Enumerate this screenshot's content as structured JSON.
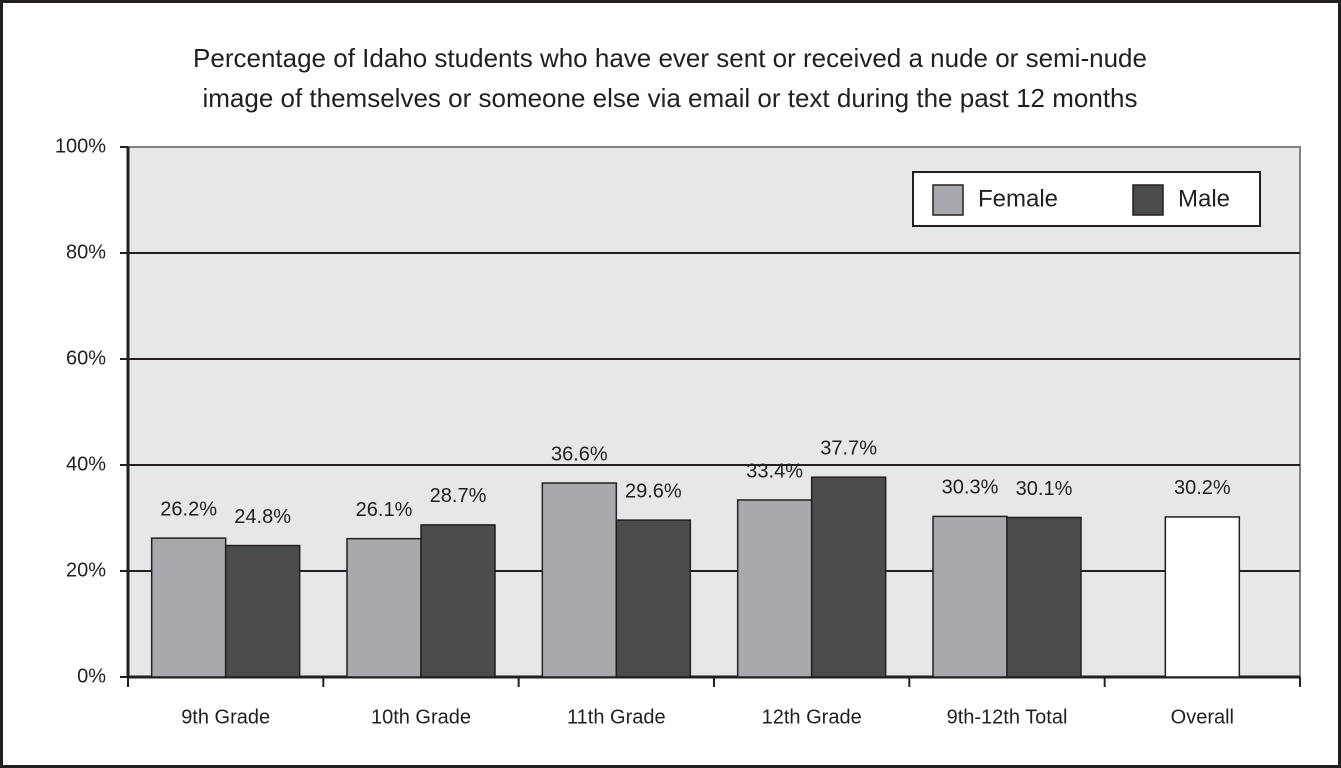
{
  "chart_data": {
    "type": "bar",
    "title": [
      "Percentage of Idaho students who have ever sent or received a nude or semi-nude",
      "image of themselves or someone else via email or text during the past 12 months"
    ],
    "categories": [
      "9th Grade",
      "10th Grade",
      "11th Grade",
      "12th Grade",
      "9th-12th Total",
      "Overall"
    ],
    "series": [
      {
        "name": "Female",
        "color": "#a7a9ac",
        "values": [
          26.2,
          26.1,
          36.6,
          33.4,
          30.3,
          null
        ],
        "value_labels": [
          "26.2%",
          "26.1%",
          "36.6%",
          "33.4%",
          "30.3%",
          null
        ]
      },
      {
        "name": "Male",
        "color": "#4a4b4d",
        "values": [
          24.8,
          28.7,
          29.6,
          37.7,
          30.1,
          null
        ],
        "value_labels": [
          "24.8%",
          "28.7%",
          "29.6%",
          "37.7%",
          "30.1%",
          null
        ]
      },
      {
        "color": "#ffffff",
        "values": [
          null,
          null,
          null,
          null,
          null,
          30.2
        ],
        "value_labels": [
          null,
          null,
          null,
          null,
          null,
          "30.2%"
        ]
      }
    ],
    "ylim": [
      0,
      100
    ],
    "yticks": [
      {
        "value": 0,
        "label": "0%"
      },
      {
        "value": 20,
        "label": "20%"
      },
      {
        "value": 40,
        "label": "40%"
      },
      {
        "value": 60,
        "label": "60%"
      },
      {
        "value": 80,
        "label": "80%"
      },
      {
        "value": 100,
        "label": "100%"
      }
    ],
    "grid": true,
    "legend": "upper right"
  }
}
